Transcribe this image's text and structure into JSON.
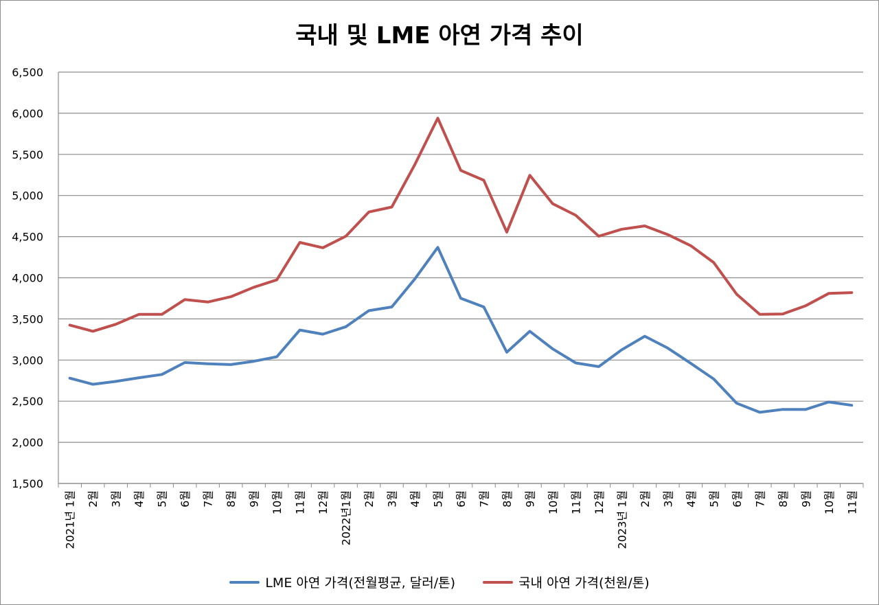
{
  "chart_data": {
    "type": "line",
    "title": "국내 및 LME 아연 가격 추이",
    "xlabel": "",
    "ylabel": "",
    "ylim": [
      1500,
      6500
    ],
    "yticks": [
      "1,500",
      "2,000",
      "2,500",
      "3,000",
      "3,500",
      "4,000",
      "4,500",
      "5,000",
      "5,500",
      "6,000",
      "6,500"
    ],
    "grid": true,
    "legend": "bottom",
    "categories": [
      "2021년 1월",
      "2월",
      "3월",
      "4월",
      "5월",
      "6월",
      "7월",
      "8월",
      "9월",
      "10월",
      "11월",
      "12월",
      "2022년1월",
      "2월",
      "3월",
      "4월",
      "5월",
      "6월",
      "7월",
      "8월",
      "9월",
      "10월",
      "11월",
      "12월",
      "2023년 1월",
      "2월",
      "3월",
      "4월",
      "5월",
      "6월",
      "7월",
      "8월",
      "9월",
      "10월",
      "11월"
    ],
    "series": [
      {
        "name": "LME 아연 가격(전월평균, 달러/톤)",
        "color": "#4f81bd",
        "values": [
          2780,
          2705,
          2740,
          2785,
          2825,
          2970,
          2955,
          2945,
          2985,
          3040,
          3365,
          3315,
          3405,
          3600,
          3645,
          3985,
          4370,
          3750,
          3645,
          3095,
          3350,
          3135,
          2965,
          2920,
          3125,
          3290,
          3145,
          2960,
          2770,
          2475,
          2365,
          2400,
          2400,
          2490,
          2450
        ]
      },
      {
        "name": "국내 아연 가격(천원/톤)",
        "color": "#c0504d",
        "values": [
          3425,
          3350,
          3435,
          3555,
          3555,
          3735,
          3705,
          3770,
          3885,
          3975,
          4430,
          4365,
          4505,
          4800,
          4860,
          5375,
          5940,
          5305,
          5185,
          4555,
          5245,
          4900,
          4760,
          4505,
          4590,
          4630,
          4525,
          4390,
          4185,
          3800,
          3555,
          3560,
          3660,
          3810,
          3820
        ]
      }
    ]
  }
}
